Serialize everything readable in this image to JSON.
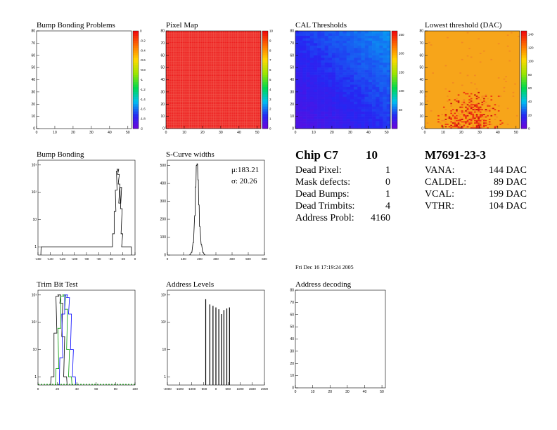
{
  "panels": [
    {
      "id": "p1",
      "title": "Bump Bonding Problems",
      "type": "heatmap",
      "fill": "none",
      "xticks": [
        "0",
        "10",
        "20",
        "30",
        "40",
        "50"
      ],
      "yticks": [
        "0",
        "10",
        "20",
        "30",
        "40",
        "50",
        "60",
        "70",
        "80"
      ],
      "zticks": [
        "0",
        "-0.2",
        "-0.4",
        "-0.6",
        "-0.8",
        "-1",
        "-1.2",
        "-1.4",
        "-1.6",
        "-1.8",
        "-2"
      ]
    },
    {
      "id": "p2",
      "title": "Pixel Map",
      "type": "heatmap",
      "fill": "uniform",
      "value": 10,
      "xticks": [
        "0",
        "10",
        "20",
        "30",
        "40",
        "50"
      ],
      "yticks": [
        "0",
        "10",
        "20",
        "30",
        "40",
        "50",
        "60",
        "70",
        "80"
      ],
      "zticks": [
        "0",
        "1",
        "2",
        "3",
        "4",
        "5",
        "6",
        "7",
        "8",
        "9",
        "10"
      ]
    },
    {
      "id": "p3",
      "title": "CAL Thresholds",
      "type": "heatmap",
      "fill": "gradient",
      "value_range": [
        40,
        80
      ],
      "xticks": [
        "0",
        "10",
        "20",
        "30",
        "40",
        "50"
      ],
      "yticks": [
        "0",
        "10",
        "20",
        "30",
        "40",
        "50",
        "60",
        "70",
        "80"
      ],
      "zticks": [
        "50",
        "100",
        "150",
        "200",
        "250"
      ]
    },
    {
      "id": "p4",
      "title": "Lowest threshold (DAC)",
      "type": "heatmap",
      "fill": "noisy",
      "value_range": [
        100,
        120
      ],
      "xticks": [
        "0",
        "10",
        "20",
        "30",
        "40",
        "50"
      ],
      "yticks": [
        "0",
        "10",
        "20",
        "30",
        "40",
        "50",
        "60",
        "70",
        "80"
      ],
      "zticks": [
        "0",
        "20",
        "40",
        "60",
        "80",
        "100",
        "120",
        "140"
      ]
    },
    {
      "id": "p5",
      "title": "Bump Bonding",
      "type": "histogram",
      "log": true,
      "xticks": [
        "-160",
        "-140",
        "-120",
        "-100",
        "-80",
        "-60",
        "-40",
        "-20",
        "0"
      ],
      "yticks": [
        "1",
        "10",
        "10²",
        "10³"
      ]
    },
    {
      "id": "p6",
      "title": "S-Curve widths",
      "type": "histogram",
      "log": false,
      "xticks": [
        "0",
        "100",
        "200",
        "300",
        "400",
        "500",
        "600"
      ],
      "yticks": [
        "0",
        "100",
        "200",
        "300",
        "400",
        "500"
      ],
      "stats": {
        "mean": "μ:183.21",
        "sigma": "σ: 20.26"
      }
    },
    {
      "id": "p7",
      "title": "Trim Bit Test",
      "type": "histogram",
      "log": true,
      "xticks": [
        "0",
        "20",
        "40",
        "60",
        "80",
        "100"
      ],
      "yticks": [
        "1",
        "10",
        "10²",
        "10³"
      ]
    },
    {
      "id": "p8",
      "title": "Address Levels",
      "type": "histogram",
      "log": true,
      "xticks": [
        "-2000",
        "-1500",
        "-1000",
        "-500",
        "0",
        "500",
        "1000",
        "1500",
        "2000"
      ],
      "yticks": [
        "1",
        "10",
        "10²",
        "10³"
      ]
    },
    {
      "id": "p9",
      "title": "Address decoding",
      "type": "heatmap",
      "fill": "none",
      "xticks": [
        "0",
        "10",
        "20",
        "30",
        "40",
        "50"
      ],
      "yticks": [
        "0",
        "10",
        "20",
        "30",
        "40",
        "50",
        "60",
        "70",
        "80"
      ]
    }
  ],
  "summary": {
    "chip_label": "Chip C7",
    "chip_grade": "10",
    "rows": [
      {
        "label": "Dead Pixel:",
        "value": "1"
      },
      {
        "label": "Mask defects:",
        "value": "0"
      },
      {
        "label": "Dead Bumps:",
        "value": "1"
      },
      {
        "label": "Dead Trimbits:",
        "value": "4"
      },
      {
        "label": "Address Probl:",
        "value": "4160"
      }
    ],
    "timestamp": "Fri Dec 16 17:19:24 2005"
  },
  "module": {
    "name": "M7691-23-3",
    "rows": [
      {
        "label": "VANA:",
        "value": "144 DAC"
      },
      {
        "label": "CALDEL:",
        "value": "89 DAC"
      },
      {
        "label": "VCAL:",
        "value": "199 DAC"
      },
      {
        "label": "VTHR:",
        "value": "104 DAC"
      }
    ]
  },
  "chart_data": [
    {
      "type": "heatmap",
      "title": "Bump Bonding Problems",
      "xlim": [
        0,
        52
      ],
      "ylim": [
        0,
        80
      ],
      "zlim": [
        -2,
        0
      ],
      "values": "empty"
    },
    {
      "type": "heatmap",
      "title": "Pixel Map",
      "xlim": [
        0,
        52
      ],
      "ylim": [
        0,
        80
      ],
      "zlim": [
        0,
        10
      ],
      "values": "all pixels 10"
    },
    {
      "type": "heatmap",
      "title": "CAL Thresholds",
      "xlim": [
        0,
        52
      ],
      "ylim": [
        0,
        80
      ],
      "zlim": [
        0,
        260
      ],
      "values": "approx 40-80, increasing toward upper right"
    },
    {
      "type": "heatmap",
      "title": "Lowest threshold (DAC)",
      "xlim": [
        0,
        52
      ],
      "ylim": [
        0,
        80
      ],
      "zlim": [
        0,
        145
      ],
      "values": "mostly ~110, hot spots near x=25,y=0-25"
    },
    {
      "type": "bar",
      "title": "Bump Bonding",
      "log_y": true,
      "xlim": [
        -165,
        5
      ],
      "ylim": [
        0.5,
        1500
      ],
      "series": [
        {
          "values": [
            [
              -158,
              1
            ],
            [
              -36,
              1
            ],
            [
              -33,
              3
            ],
            [
              -30,
              20
            ],
            [
              -28,
              120
            ],
            [
              -26,
              600
            ],
            [
              -25,
              700
            ],
            [
              -24,
              450
            ],
            [
              -23,
              200
            ],
            [
              -22,
              40
            ],
            [
              -20,
              150
            ],
            [
              -19,
              25
            ],
            [
              -18,
              3
            ],
            [
              -17,
              1
            ],
            [
              -3,
              1
            ]
          ]
        }
      ]
    },
    {
      "type": "bar",
      "title": "S-Curve widths",
      "xlim": [
        0,
        600
      ],
      "ylim": [
        0,
        530
      ],
      "mean": 183.21,
      "sigma": 20.26,
      "series": [
        {
          "values": [
            [
              140,
              3
            ],
            [
              150,
              15
            ],
            [
              160,
              70
            ],
            [
              170,
              220
            ],
            [
              175,
              380
            ],
            [
              180,
              500
            ],
            [
              185,
              510
            ],
            [
              190,
              420
            ],
            [
              195,
              280
            ],
            [
              200,
              160
            ],
            [
              210,
              60
            ],
            [
              220,
              15
            ],
            [
              230,
              3
            ]
          ]
        }
      ]
    },
    {
      "type": "bar",
      "title": "Trim Bit Test",
      "log_y": true,
      "xlim": [
        0,
        100
      ],
      "ylim": [
        0.5,
        1500
      ],
      "series": [
        {
          "name": "",
          "color": "#000000",
          "values": [
            [
              15,
              1
            ],
            [
              18,
              40
            ],
            [
              20,
              900
            ],
            [
              22,
              1000
            ],
            [
              24,
              500
            ],
            [
              26,
              30
            ],
            [
              28,
              1
            ]
          ]
        },
        {
          "name": "",
          "color": "#009900",
          "values": [
            [
              20,
              2
            ],
            [
              22,
              60
            ],
            [
              25,
              900
            ],
            [
              27,
              1000
            ],
            [
              29,
              300
            ],
            [
              31,
              10
            ],
            [
              33,
              1
            ]
          ]
        },
        {
          "name": "",
          "color": "#0000ff",
          "values": [
            [
              24,
              5
            ],
            [
              26,
              200
            ],
            [
              29,
              1000
            ],
            [
              31,
              800
            ],
            [
              33,
              200
            ],
            [
              35,
              10
            ],
            [
              37,
              1
            ]
          ]
        }
      ]
    },
    {
      "type": "bar",
      "title": "Address Levels",
      "log_y": true,
      "xlim": [
        -2000,
        2000
      ],
      "ylim": [
        0.5,
        1500
      ],
      "series": [
        {
          "values": [
            [
              -420,
              700
            ],
            [
              -250,
              450
            ],
            [
              -120,
              400
            ],
            [
              0,
              350
            ],
            [
              120,
              300
            ],
            [
              230,
              200
            ],
            [
              330,
              280
            ],
            [
              450,
              320
            ],
            [
              560,
              350
            ]
          ]
        }
      ]
    },
    {
      "type": "heatmap",
      "title": "Address decoding",
      "xlim": [
        0,
        52
      ],
      "ylim": [
        0,
        80
      ],
      "values": "empty"
    }
  ]
}
